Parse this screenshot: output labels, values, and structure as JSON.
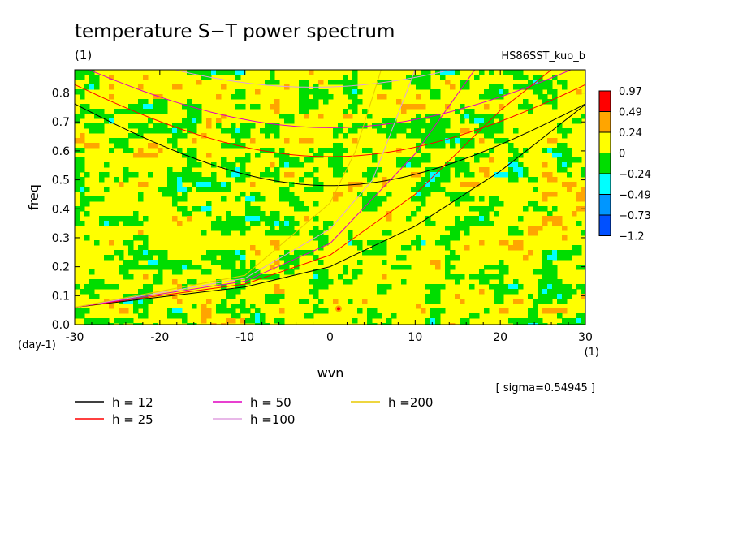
{
  "chart_data": {
    "type": "heatmap",
    "title": "temperature S−T power spectrum",
    "subtitle": "(1)",
    "run_label": "HS86SST_kuo_b",
    "xlabel": "wvn",
    "xunit": "(1)",
    "ylabel": "freq",
    "yunit": "(day-1)",
    "xlim": [
      -30,
      30
    ],
    "ylim": [
      0,
      0.88
    ],
    "x_ticks": [
      "-30",
      "-20",
      "-10",
      "0",
      "10",
      "20",
      "30"
    ],
    "x_tick_values": [
      -30,
      -20,
      -10,
      0,
      10,
      20,
      30
    ],
    "y_ticks": [
      "0.0",
      "0.1",
      "0.2",
      "0.3",
      "0.4",
      "0.5",
      "0.6",
      "0.7",
      "0.8"
    ],
    "y_tick_values": [
      0,
      0.1,
      0.2,
      0.3,
      0.4,
      0.5,
      0.6,
      0.7,
      0.8
    ],
    "colorbar": {
      "labels": [
        "0.97",
        "0.49",
        "0.24",
        "0",
        "−0.24",
        "−0.49",
        "−0.73",
        "−1.2"
      ],
      "colors": [
        "#ff0000",
        "#ffa500",
        "#ffff00",
        "#00dd00",
        "#00ffff",
        "#0096ff",
        "#0050ff"
      ]
    },
    "sigma_note": "[ sigma=0.54945 ]",
    "legend": [
      {
        "label": "h = 12",
        "color": "#000000"
      },
      {
        "label": "h = 25",
        "color": "#ff0000"
      },
      {
        "label": "h = 50",
        "color": "#e000c0"
      },
      {
        "label": "h =100",
        "color": "#e0a0e0"
      },
      {
        "label": "h =200",
        "color": "#e8c800"
      }
    ],
    "dispersion_curves": [
      {
        "h": 12,
        "color": "#000000",
        "kind": "gravity",
        "min_freq": 0.48,
        "min_wvn": 0
      },
      {
        "h": 25,
        "color": "#ff0000",
        "kind": "gravity",
        "min_freq": 0.58,
        "min_wvn": 0
      },
      {
        "h": 50,
        "color": "#e000c0",
        "kind": "gravity",
        "min_freq": 0.68,
        "min_wvn": 0
      },
      {
        "h": 100,
        "color": "#e0a0e0",
        "kind": "gravity",
        "min_freq": 0.82,
        "min_wvn": -2
      },
      {
        "h": 12,
        "color": "#000000",
        "kind": "kelvin",
        "points": [
          [
            -30,
            0.06
          ],
          [
            -10,
            0.13
          ],
          [
            0,
            0.2
          ],
          [
            10,
            0.34
          ],
          [
            20,
            0.53
          ],
          [
            30,
            0.76
          ]
        ]
      },
      {
        "h": 25,
        "color": "#ff0000",
        "kind": "kelvin",
        "points": [
          [
            -30,
            0.06
          ],
          [
            -10,
            0.14
          ],
          [
            0,
            0.24
          ],
          [
            10,
            0.45
          ],
          [
            20,
            0.74
          ],
          [
            26,
            0.88
          ]
        ]
      },
      {
        "h": 50,
        "color": "#e000c0",
        "kind": "kelvin",
        "points": [
          [
            -30,
            0.06
          ],
          [
            -10,
            0.15
          ],
          [
            0,
            0.28
          ],
          [
            10,
            0.59
          ],
          [
            17,
            0.88
          ]
        ]
      },
      {
        "h": 100,
        "color": "#e0a0e0",
        "kind": "kelvin",
        "points": [
          [
            -30,
            0.06
          ],
          [
            -10,
            0.16
          ],
          [
            0,
            0.33
          ],
          [
            5,
            0.5
          ],
          [
            10,
            0.88
          ]
        ]
      },
      {
        "h": 200,
        "color": "#e8c800",
        "kind": "kelvin",
        "points": [
          [
            -30,
            0.06
          ],
          [
            -10,
            0.17
          ],
          [
            0,
            0.42
          ],
          [
            3,
            0.6
          ],
          [
            6,
            0.88
          ]
        ]
      }
    ],
    "peak_note": "isolated maximum near wvn 1, freq 0.05"
  }
}
